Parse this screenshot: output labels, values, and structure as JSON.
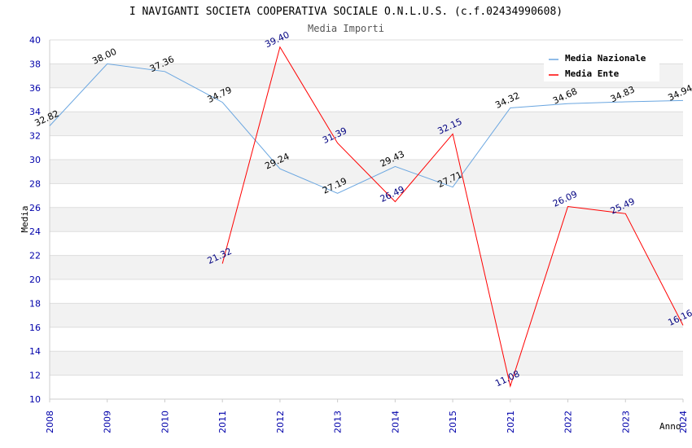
{
  "chart_data": {
    "type": "line",
    "title": "I NAVIGANTI SOCIETA COOPERATIVA SOCIALE O.N.L.U.S. (c.f.02434990608)",
    "subtitle": "Media Importi",
    "xlabel": "Anno",
    "ylabel": "Media",
    "ylim": [
      10,
      40
    ],
    "yticks": [
      "10",
      "12",
      "14",
      "16",
      "18",
      "20",
      "22",
      "24",
      "26",
      "28",
      "30",
      "32",
      "34",
      "36",
      "38",
      "40"
    ],
    "categories": [
      "2008",
      "2009",
      "2010",
      "2011",
      "2012",
      "2013",
      "2014",
      "2015",
      "2021",
      "2022",
      "2023",
      "2024"
    ],
    "series": [
      {
        "name": "Media Nazionale",
        "color": "#6aa6e0",
        "values": [
          32.82,
          38.0,
          37.36,
          34.79,
          29.24,
          27.19,
          29.43,
          27.71,
          34.32,
          34.68,
          34.83,
          34.94
        ],
        "labels": [
          "32.82",
          "38.00",
          "37.36",
          "34.79",
          "29.24",
          "27.19",
          "29.43",
          "27.71",
          "34.32",
          "34.68",
          "34.83",
          "34.94"
        ]
      },
      {
        "name": "Media Ente",
        "color": "#ff0000",
        "values": [
          null,
          null,
          null,
          21.32,
          39.4,
          31.39,
          26.49,
          32.15,
          11.08,
          26.09,
          25.49,
          16.16
        ],
        "labels": [
          "",
          "",
          "",
          "21.32",
          "39.40",
          "31.39",
          "26.49",
          "32.15",
          "11.08",
          "26.09",
          "25.49",
          "16.16"
        ]
      }
    ],
    "legend_position": "top-right",
    "grid": true
  }
}
